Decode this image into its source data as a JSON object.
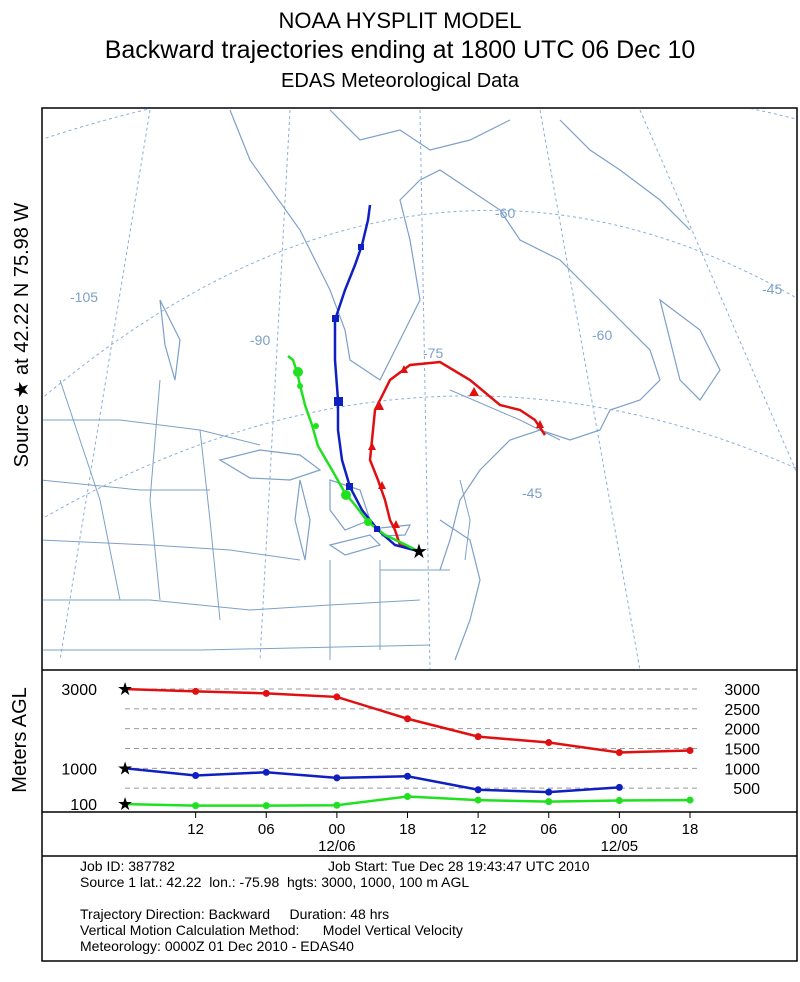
{
  "titles": {
    "line1": "NOAA HYSPLIT MODEL",
    "line2": "Backward trajectories ending at 1800 UTC 06 Dec 10",
    "line3": "EDAS Meteorological Data"
  },
  "map": {
    "source_label": "Source ★ at   42.22 N   75.98 W",
    "longitude_labels": [
      "-105",
      "-90",
      "-75",
      "-60",
      "-60",
      "-45",
      "-45"
    ]
  },
  "colors": {
    "red": "#e01010",
    "blue": "#1020c0",
    "green": "#20e020",
    "map_lines": "#7da0c8",
    "graticule": "#8aaed8"
  },
  "chart_data": {
    "type": "line",
    "title": "Backward trajectories ending at 1800 UTC 06 Dec 10",
    "ylabel": "Meters AGL",
    "ylim": [
      0,
      3000
    ],
    "y_ticks_left": [
      "3000",
      "1000",
      "100"
    ],
    "y_ticks_right": [
      "3000",
      "2500",
      "2000",
      "1500",
      "1000",
      "500"
    ],
    "x_tick_labels": [
      "12",
      "06",
      "00",
      "18",
      "12",
      "06",
      "00",
      "18"
    ],
    "x_date_labels": [
      "12/06",
      "12/05"
    ],
    "duration_hours": 48,
    "series": [
      {
        "height_label": "3000 m",
        "color": "#e01010",
        "hours_back": [
          0,
          6,
          12,
          18,
          24,
          30,
          36,
          42,
          48
        ],
        "heights_m": [
          3000,
          2940,
          2890,
          2800,
          2250,
          1800,
          1650,
          1400,
          1450
        ]
      },
      {
        "height_label": "1000 m",
        "color": "#1020c0",
        "hours_back": [
          0,
          6,
          12,
          18,
          24,
          30,
          36,
          42
        ],
        "heights_m": [
          1000,
          820,
          900,
          760,
          800,
          460,
          400,
          520
        ]
      },
      {
        "height_label": "100 m",
        "color": "#20e020",
        "hours_back": [
          0,
          6,
          12,
          18,
          24,
          30,
          36,
          42,
          48
        ],
        "heights_m": [
          100,
          60,
          60,
          70,
          290,
          200,
          160,
          190,
          200
        ]
      }
    ]
  },
  "job_info": {
    "job_id": "Job ID: 387782",
    "job_start": "Job Start: Tue Dec 28 19:43:47 UTC 2010",
    "source": "Source 1 lat.: 42.22  lon.: -75.98  hgts: 3000, 1000, 100 m AGL",
    "direction": "Trajectory Direction: Backward     Duration: 48 hrs",
    "vertical": "Vertical Motion Calculation Method:      Model Vertical Velocity",
    "meteorology": "Meteorology: 0000Z 01 Dec 2010 - EDAS40"
  }
}
